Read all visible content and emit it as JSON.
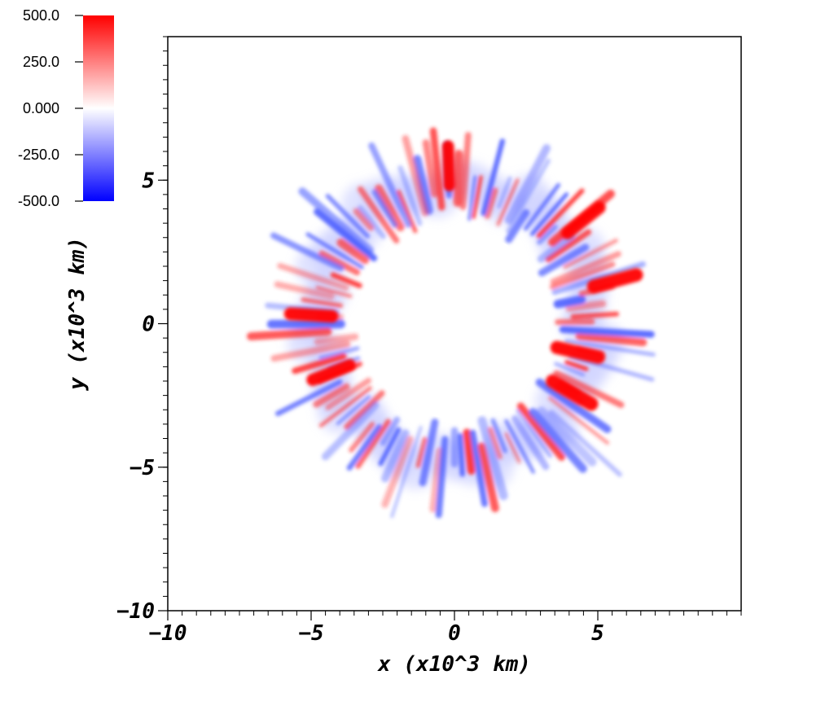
{
  "chart_data": {
    "type": "heatmap",
    "title": "",
    "xlabel": "x (x10^3 km)",
    "ylabel": "y (x10^3 km)",
    "xlim": [
      -10,
      10
    ],
    "ylim": [
      -10,
      10
    ],
    "x_ticks": [
      -10,
      -5,
      0,
      5
    ],
    "y_ticks": [
      -10,
      -5,
      0,
      5
    ],
    "x_tick_labels": [
      "−10",
      "−5",
      "0",
      "5"
    ],
    "y_tick_labels": [
      "−10",
      "−5",
      "0",
      "5"
    ],
    "grid": false,
    "colorbar": {
      "placement": "top-left",
      "vmin": -500,
      "vmax": 500,
      "ticks": [
        500,
        250,
        0,
        -250,
        -500
      ],
      "tick_labels": [
        "500.0",
        "250.0",
        "0.000",
        "-250.0",
        "-500.0"
      ],
      "colors": {
        "max": "#ff0000",
        "mid": "#ffffff",
        "min": "#0000ff"
      }
    },
    "field": {
      "description_of_structure": "ring of alternating positive/negative radial streaks",
      "inner_radius": 3.3,
      "outer_radius": 7.0,
      "peak_features": [
        {
          "x": 4.1,
          "y": -2.4,
          "value": 500
        },
        {
          "x": 5.6,
          "y": 1.5,
          "value": 480
        },
        {
          "x": 4.3,
          "y": -1.0,
          "value": 450
        },
        {
          "x": -5.0,
          "y": 0.3,
          "value": 420
        },
        {
          "x": 4.5,
          "y": 3.6,
          "value": 400
        },
        {
          "x": -4.3,
          "y": -1.7,
          "value": 380
        },
        {
          "x": -0.2,
          "y": 5.5,
          "value": 360
        }
      ]
    }
  }
}
